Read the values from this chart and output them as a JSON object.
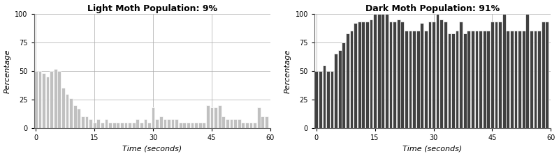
{
  "light_title": "Light Moth Population: 9%",
  "dark_title": "Dark Moth Population: 91%",
  "xlabel": "Time (seconds)",
  "ylabel": "Percentage",
  "ylim": [
    0,
    100
  ],
  "yticks": [
    0,
    25,
    50,
    75,
    100
  ],
  "xticks": [
    0,
    15,
    30,
    45,
    60
  ],
  "light_color": "#c0c0c0",
  "dark_color": "#404040",
  "light_values": [
    50,
    50,
    48,
    45,
    50,
    52,
    50,
    35,
    30,
    26,
    20,
    17,
    10,
    10,
    8,
    5,
    8,
    5,
    8,
    5,
    5,
    5,
    5,
    5,
    5,
    5,
    8,
    5,
    8,
    5,
    18,
    8,
    10,
    8,
    8,
    8,
    8,
    5,
    5,
    5,
    5,
    5,
    5,
    5,
    20,
    18,
    18,
    20,
    10,
    8,
    8,
    8,
    8,
    5,
    5,
    5,
    5,
    18,
    10,
    10
  ],
  "dark_values": [
    50,
    50,
    55,
    50,
    50,
    65,
    68,
    75,
    83,
    85,
    92,
    93,
    93,
    93,
    95,
    100,
    100,
    100,
    100,
    93,
    93,
    95,
    93,
    85,
    85,
    85,
    85,
    92,
    85,
    93,
    93,
    100,
    95,
    93,
    83,
    83,
    85,
    93,
    83,
    85,
    85,
    85,
    85,
    85,
    85,
    93,
    93,
    93,
    100,
    85,
    85,
    85,
    85,
    85,
    100,
    85,
    85,
    85,
    93,
    93
  ]
}
